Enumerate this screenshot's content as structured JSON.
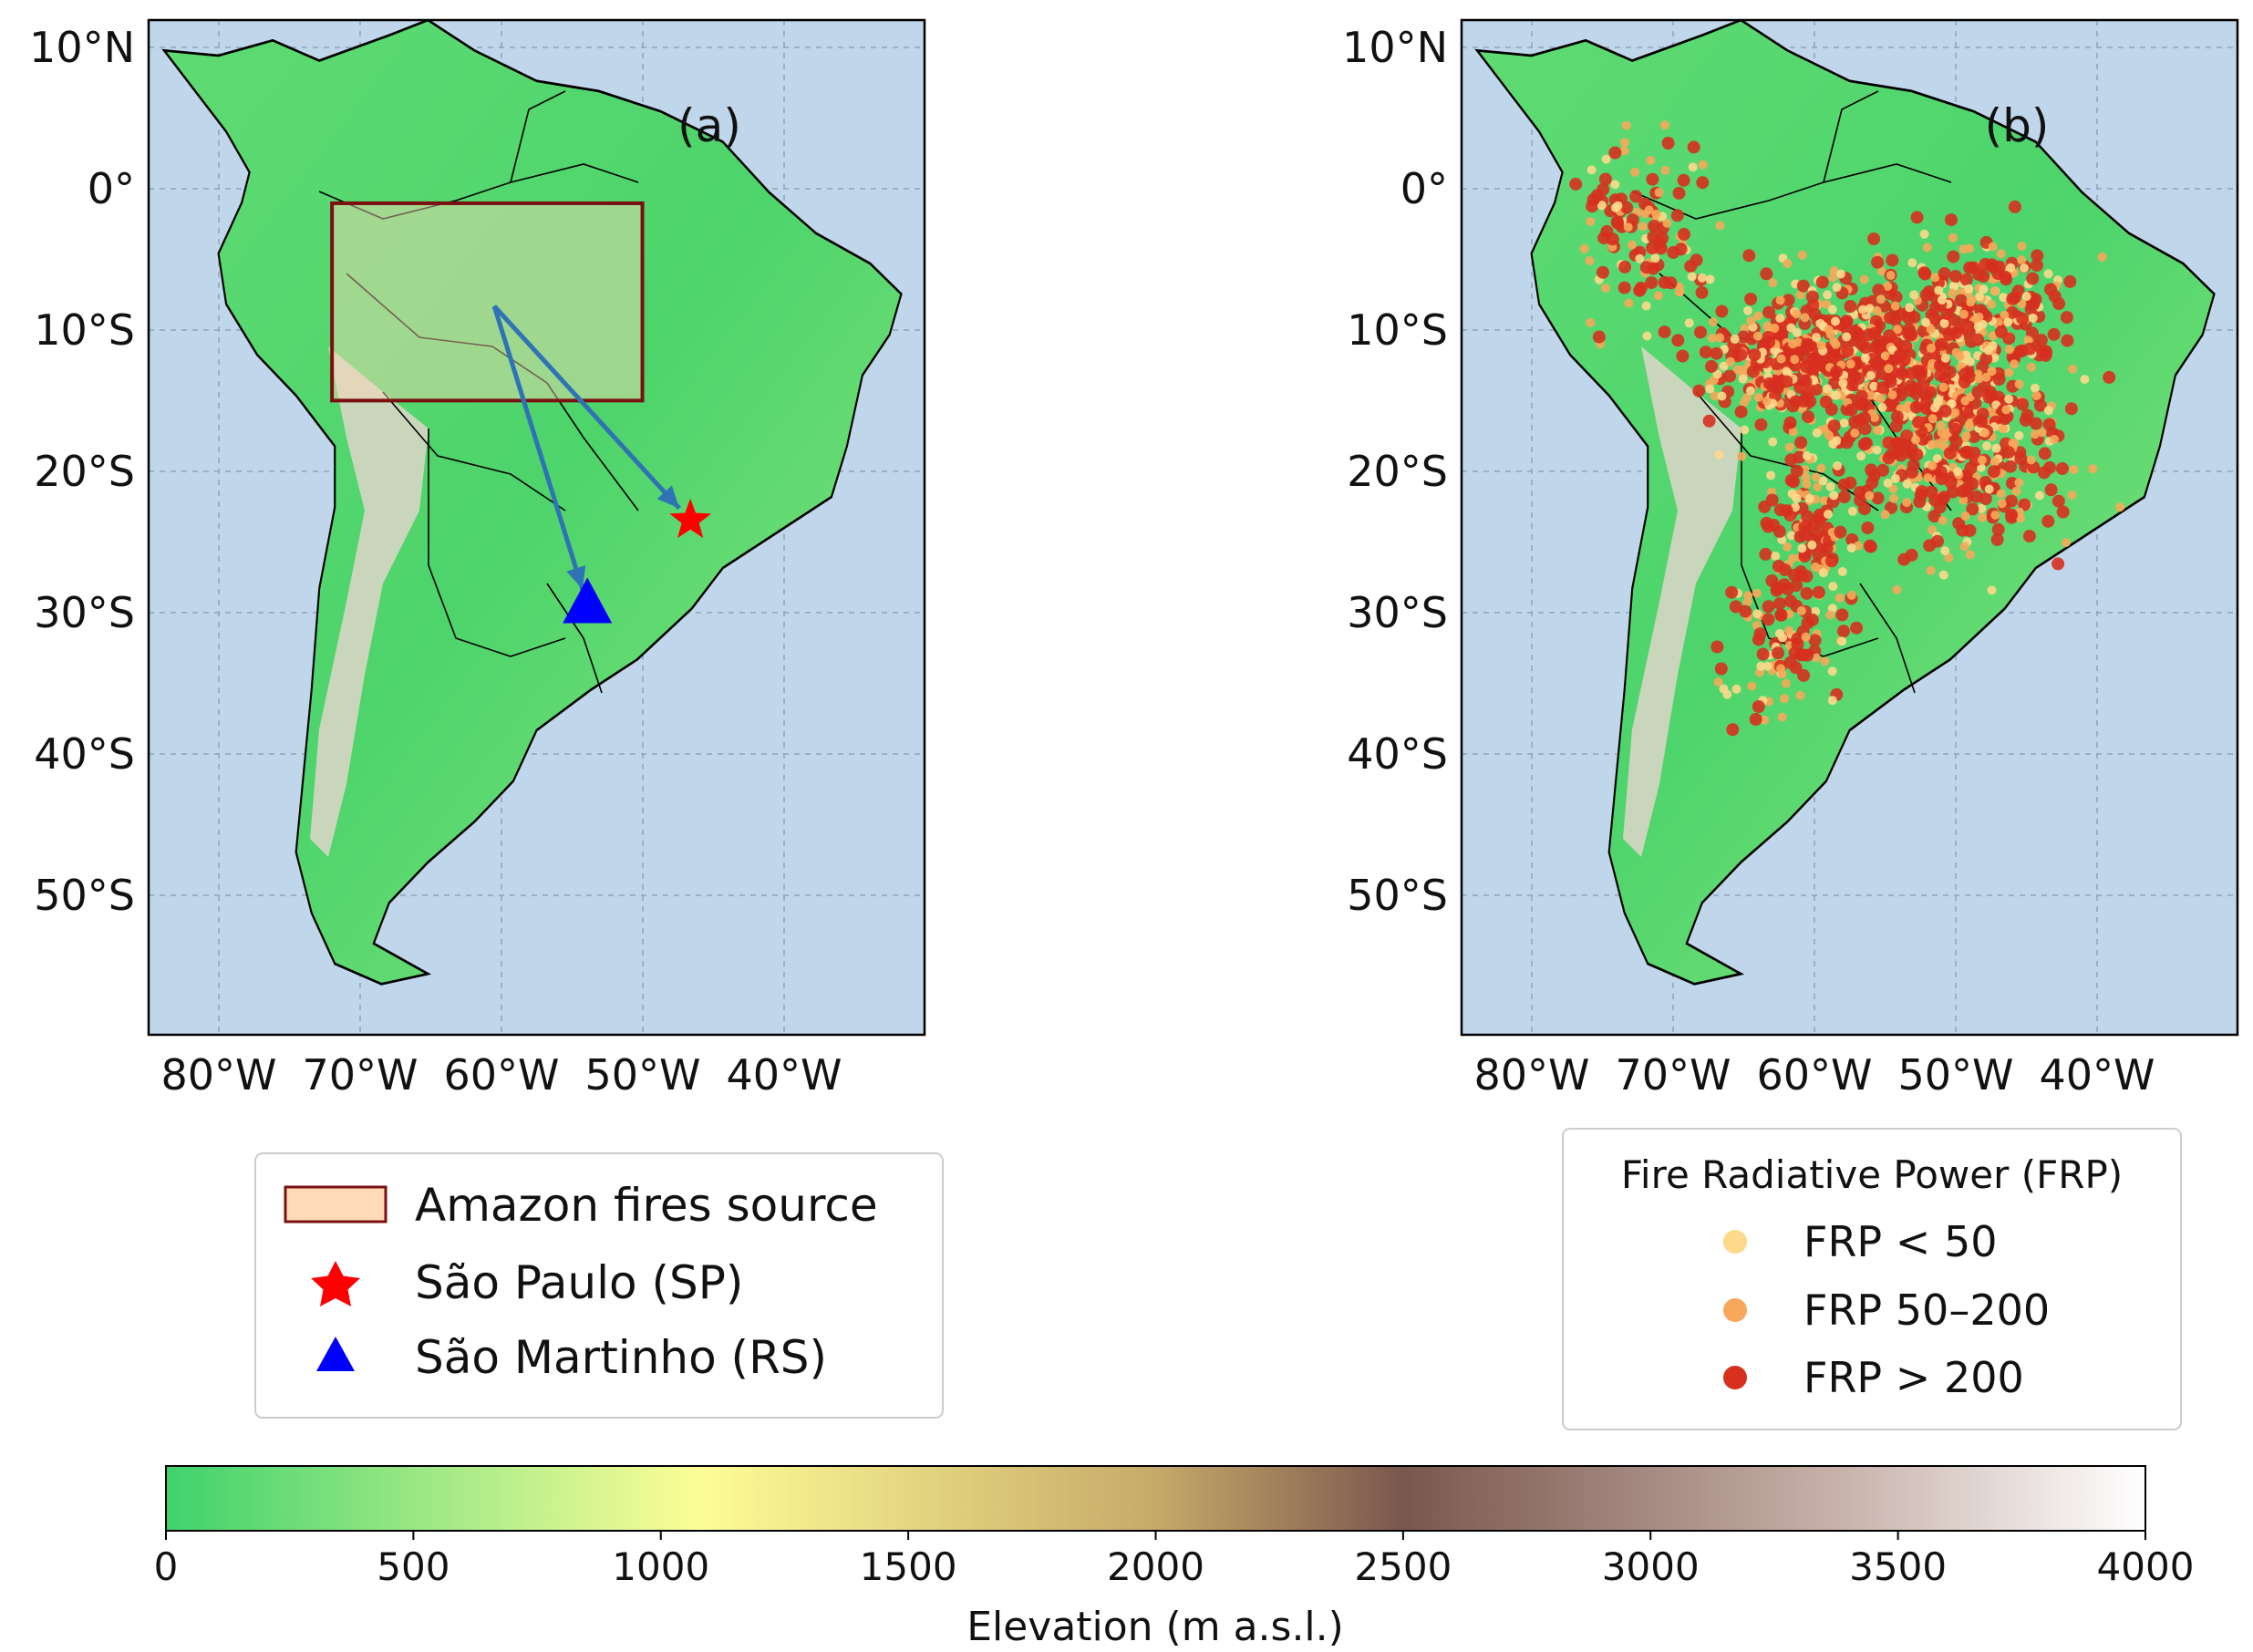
{
  "panels": [
    {
      "id": "a",
      "label": "(a)",
      "lat_ticks": [
        "10°N",
        "0°",
        "10°S",
        "20°S",
        "30°S",
        "40°S",
        "50°S"
      ],
      "lon_ticks": [
        "80°W",
        "70°W",
        "60°W",
        "50°W",
        "40°W"
      ]
    },
    {
      "id": "b",
      "label": "(b)",
      "lat_ticks": [
        "10°N",
        "0°",
        "10°S",
        "20°S",
        "30°S",
        "40°S",
        "50°S"
      ],
      "lon_ticks": [
        "80°W",
        "70°W",
        "60°W",
        "50°W",
        "40°W"
      ]
    }
  ],
  "map_extent": {
    "lon": [
      -85,
      -30
    ],
    "lat": [
      -60,
      12
    ]
  },
  "colors": {
    "ocean": "#c0d6ea",
    "land_low": "#3fcf6a",
    "box_edge": "#7b1010",
    "box_fill": "#ffdab9",
    "arrow": "#2f73b5",
    "star": "#ff0000",
    "triangle": "#0000ff",
    "frp_low": "#fdd98c",
    "frp_mid": "#f7a85a",
    "frp_high": "#d7301f"
  },
  "panel_a": {
    "source_box": {
      "lon": [
        -72,
        -50
      ],
      "lat": [
        -15,
        -1
      ]
    },
    "arrow_origin": {
      "lon": -60.5,
      "lat": -8.3
    },
    "sao_paulo": {
      "lon": -46.6,
      "lat": -23.5
    },
    "sao_martinho": {
      "lon": -53.9,
      "lat": -29.5
    }
  },
  "legend_a": {
    "items": [
      {
        "marker": "rectangle",
        "label": "Amazon fires source"
      },
      {
        "marker": "star",
        "label": "São Paulo (SP)"
      },
      {
        "marker": "triangle",
        "label": "São Martinho (RS)"
      }
    ]
  },
  "legend_b": {
    "title": "Fire Radiative Power (FRP)",
    "items": [
      {
        "marker": "frp_low",
        "label": "FRP < 50"
      },
      {
        "marker": "frp_mid",
        "label": "FRP 50–200"
      },
      {
        "marker": "frp_high",
        "label": "FRP > 200"
      }
    ]
  },
  "colorbar": {
    "label": "Elevation (m a.s.l.)",
    "ticks": [
      "0",
      "500",
      "1000",
      "1500",
      "2000",
      "2500",
      "3000",
      "3500",
      "4000"
    ],
    "range": [
      0,
      4000
    ],
    "stops": [
      "#3fd26c",
      "#b9ef8c",
      "#fdfd96",
      "#c7a968",
      "#7a574d",
      "#c9b4ad",
      "#ffffff"
    ]
  }
}
